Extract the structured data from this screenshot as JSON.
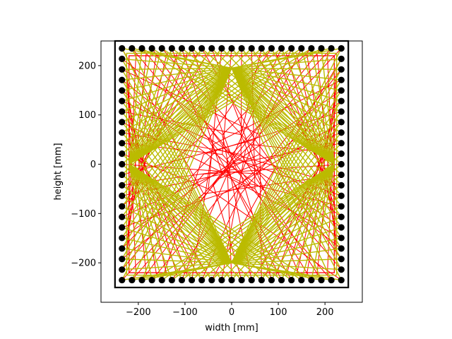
{
  "chart_data": {
    "type": "scatter",
    "title": "",
    "xlabel": "width [mm]",
    "ylabel": "height [mm]",
    "xlim": [
      -280,
      280
    ],
    "ylim": [
      -280,
      250
    ],
    "xticks": [
      -200,
      -100,
      0,
      100,
      200
    ],
    "yticks": [
      -200,
      -100,
      0,
      100,
      200
    ],
    "xtick_labels": [
      "−200",
      "−100",
      "0",
      "100",
      "200"
    ],
    "ytick_labels": [
      "−200",
      "−100",
      "0",
      "100",
      "200"
    ],
    "grid": false,
    "legend": "none",
    "frame": {
      "x": [
        -250,
        250
      ],
      "y": [
        -250,
        250
      ],
      "color": "#000000"
    },
    "pins": {
      "min": -235,
      "max": 235,
      "count_per_side": 23,
      "color": "#000000"
    },
    "inner_square": {
      "half_size": 220,
      "color": "#ff0000"
    },
    "outer_lines": {
      "points": [
        [
          -220,
          0
        ],
        [
          0,
          195
        ],
        [
          220,
          0
        ],
        [
          0,
          -200
        ]
      ],
      "color": "#bbbb00"
    },
    "inner_lines": {
      "cross": 60,
      "color": "#ff0000"
    }
  }
}
